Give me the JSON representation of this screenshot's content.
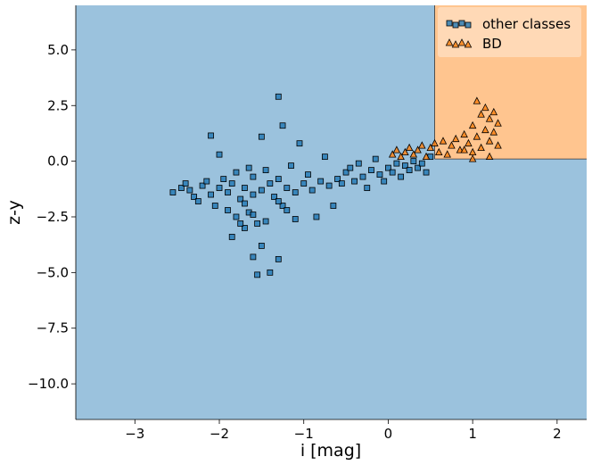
{
  "chart_data": {
    "type": "scatter",
    "xlabel": "i [mag]",
    "ylabel": "z-y",
    "xlim": [
      -3.7,
      2.35
    ],
    "ylim": [
      -11.6,
      7.0
    ],
    "xticks": [
      -3,
      -2,
      -1,
      0,
      1,
      2
    ],
    "yticks": [
      -10.0,
      -7.5,
      -5.0,
      -2.5,
      0.0,
      2.5,
      5.0
    ],
    "xtick_labels": [
      "−3",
      "−2",
      "−1",
      "0",
      "1",
      "2"
    ],
    "ytick_labels": [
      "−10.0",
      "−7.5",
      "−5.0",
      "−2.5",
      "0.0",
      "2.5",
      "5.0"
    ],
    "grid": false,
    "legend_position": "top-right",
    "decision_regions": [
      {
        "class": "other classes",
        "color": "#9bc2dd",
        "region": "background"
      },
      {
        "class": "BD",
        "color": "#ffc58f",
        "x_range": [
          0.55,
          2.35
        ],
        "y_range": [
          0.1,
          7.0
        ]
      }
    ],
    "series": [
      {
        "name": "other classes",
        "marker": "square",
        "color": "#1f77b4",
        "points": [
          [
            -2.55,
            -1.4
          ],
          [
            -2.45,
            -1.2
          ],
          [
            -2.4,
            -1.0
          ],
          [
            -2.35,
            -1.3
          ],
          [
            -2.3,
            -1.6
          ],
          [
            -2.25,
            -1.8
          ],
          [
            -2.2,
            -1.1
          ],
          [
            -2.15,
            -0.9
          ],
          [
            -2.1,
            -1.5
          ],
          [
            -2.05,
            -2.0
          ],
          [
            -2.0,
            -1.2
          ],
          [
            -2.0,
            0.3
          ],
          [
            -1.95,
            -0.8
          ],
          [
            -1.9,
            -2.2
          ],
          [
            -1.9,
            -1.4
          ],
          [
            -1.85,
            -3.4
          ],
          [
            -1.85,
            -1.0
          ],
          [
            -1.8,
            -2.5
          ],
          [
            -1.8,
            -0.5
          ],
          [
            -1.75,
            -1.7
          ],
          [
            -1.7,
            -3.0
          ],
          [
            -1.7,
            -1.2
          ],
          [
            -1.65,
            -0.3
          ],
          [
            -1.65,
            -2.3
          ],
          [
            -1.6,
            -4.3
          ],
          [
            -1.6,
            -1.5
          ],
          [
            -1.6,
            -0.7
          ],
          [
            -1.55,
            -5.1
          ],
          [
            -1.55,
            -2.8
          ],
          [
            -1.5,
            1.1
          ],
          [
            -1.5,
            -1.3
          ],
          [
            -1.5,
            -3.8
          ],
          [
            -1.45,
            -0.4
          ],
          [
            -1.45,
            -2.7
          ],
          [
            -1.4,
            -5.0
          ],
          [
            -1.4,
            -1.0
          ],
          [
            -1.35,
            -1.6
          ],
          [
            -1.3,
            2.9
          ],
          [
            -1.3,
            -4.4
          ],
          [
            -1.3,
            -0.8
          ],
          [
            -1.25,
            1.6
          ],
          [
            -1.25,
            -2.0
          ],
          [
            -1.2,
            -1.2
          ],
          [
            -1.15,
            -0.2
          ],
          [
            -1.1,
            -1.4
          ],
          [
            -1.1,
            -2.6
          ],
          [
            -1.05,
            0.8
          ],
          [
            -1.0,
            -1.0
          ],
          [
            -0.95,
            -0.6
          ],
          [
            -0.9,
            -1.3
          ],
          [
            -0.85,
            -2.5
          ],
          [
            -0.8,
            -0.9
          ],
          [
            -0.75,
            0.2
          ],
          [
            -0.7,
            -1.1
          ],
          [
            -0.65,
            -2.0
          ],
          [
            -0.6,
            -0.8
          ],
          [
            -0.55,
            -1.0
          ],
          [
            -0.5,
            -0.5
          ],
          [
            -0.45,
            -0.3
          ],
          [
            -0.4,
            -0.9
          ],
          [
            -0.35,
            -0.1
          ],
          [
            -0.3,
            -0.7
          ],
          [
            -0.25,
            -1.2
          ],
          [
            -0.2,
            -0.4
          ],
          [
            -0.15,
            0.1
          ],
          [
            -0.1,
            -0.6
          ],
          [
            -0.05,
            -0.9
          ],
          [
            0.0,
            -0.3
          ],
          [
            0.05,
            -0.5
          ],
          [
            0.1,
            -0.1
          ],
          [
            0.15,
            -0.7
          ],
          [
            0.2,
            -0.2
          ],
          [
            0.25,
            -0.4
          ],
          [
            0.3,
            0.0
          ],
          [
            0.35,
            -0.3
          ],
          [
            0.4,
            -0.1
          ],
          [
            0.45,
            -0.5
          ],
          [
            0.5,
            0.2
          ],
          [
            -2.1,
            1.15
          ],
          [
            -1.7,
            -1.9
          ],
          [
            -1.6,
            -2.4
          ],
          [
            -1.75,
            -2.8
          ],
          [
            -1.3,
            -1.8
          ],
          [
            -1.2,
            -2.2
          ]
        ]
      },
      {
        "name": "BD",
        "marker": "triangle",
        "color": "#ff7f0e",
        "points": [
          [
            0.05,
            0.3
          ],
          [
            0.1,
            0.5
          ],
          [
            0.15,
            0.2
          ],
          [
            0.2,
            0.4
          ],
          [
            0.25,
            0.6
          ],
          [
            0.3,
            0.3
          ],
          [
            0.35,
            0.5
          ],
          [
            0.4,
            0.7
          ],
          [
            0.45,
            0.2
          ],
          [
            0.5,
            0.6
          ],
          [
            0.55,
            0.8
          ],
          [
            0.6,
            0.4
          ],
          [
            0.65,
            0.9
          ],
          [
            0.7,
            0.3
          ],
          [
            0.75,
            0.7
          ],
          [
            0.8,
            1.0
          ],
          [
            0.85,
            0.5
          ],
          [
            0.9,
            1.2
          ],
          [
            0.95,
            0.8
          ],
          [
            1.0,
            1.6
          ],
          [
            1.0,
            0.4
          ],
          [
            1.05,
            2.7
          ],
          [
            1.05,
            1.1
          ],
          [
            1.1,
            2.1
          ],
          [
            1.1,
            0.6
          ],
          [
            1.15,
            2.4
          ],
          [
            1.15,
            1.4
          ],
          [
            1.2,
            1.9
          ],
          [
            1.2,
            0.9
          ],
          [
            1.25,
            2.2
          ],
          [
            1.25,
            1.3
          ],
          [
            1.3,
            1.7
          ],
          [
            1.3,
            0.7
          ],
          [
            1.2,
            0.2
          ],
          [
            1.0,
            0.1
          ],
          [
            0.9,
            0.5
          ]
        ]
      }
    ]
  },
  "legend": {
    "items": [
      {
        "label": "other classes",
        "marker": "square",
        "color": "#1f77b4"
      },
      {
        "label": "BD",
        "marker": "triangle",
        "color": "#ff7f0e"
      }
    ]
  }
}
